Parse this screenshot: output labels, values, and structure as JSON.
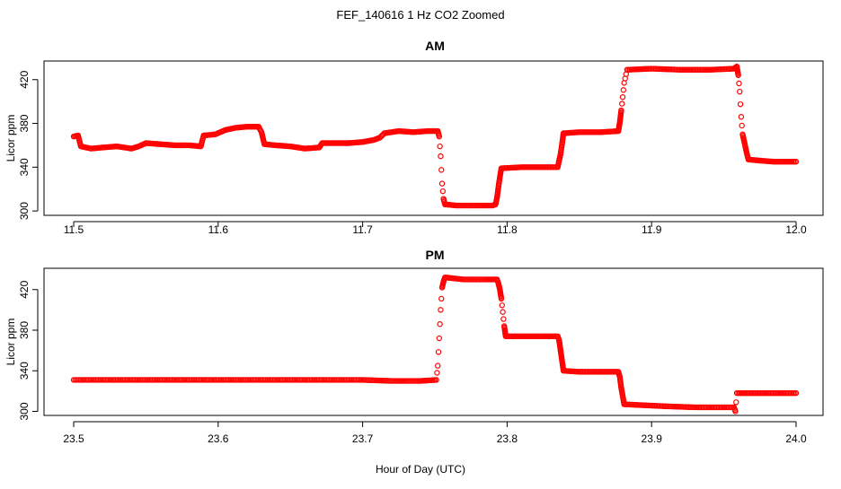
{
  "figure": {
    "title": "FEF_140616  1 Hz CO2 Zoomed",
    "xlabel": "Hour of Day (UTC)"
  },
  "colors": {
    "points": "#ff0000",
    "axes": "#000000",
    "background": "#ffffff"
  },
  "chart_data": [
    {
      "type": "scatter",
      "title": "AM",
      "ylabel": "Licor ppm",
      "xlim": [
        11.5,
        12.0
      ],
      "ylim": [
        296,
        437
      ],
      "x_ticks": [
        "11.5",
        "11.6",
        "11.7",
        "11.8",
        "11.9",
        "12.0"
      ],
      "y_ticks": [
        "300",
        "340",
        "380",
        "420"
      ],
      "grid": false,
      "segments": [
        [
          11.5,
          368
        ],
        [
          11.503,
          369
        ],
        [
          11.505,
          359
        ],
        [
          11.512,
          357
        ],
        [
          11.52,
          358
        ],
        [
          11.53,
          359
        ],
        [
          11.54,
          357
        ],
        [
          11.545,
          359
        ],
        [
          11.55,
          362
        ],
        [
          11.56,
          361
        ],
        [
          11.57,
          360
        ],
        [
          11.58,
          360
        ],
        [
          11.588,
          359
        ],
        [
          11.59,
          369
        ],
        [
          11.598,
          370
        ],
        [
          11.605,
          374
        ],
        [
          11.612,
          376
        ],
        [
          11.62,
          377
        ],
        [
          11.628,
          377
        ],
        [
          11.63,
          372
        ],
        [
          11.632,
          361
        ],
        [
          11.64,
          360
        ],
        [
          11.65,
          359
        ],
        [
          11.66,
          357
        ],
        [
          11.67,
          358
        ],
        [
          11.672,
          362
        ],
        [
          11.68,
          362
        ],
        [
          11.69,
          362
        ],
        [
          11.7,
          363
        ],
        [
          11.708,
          365
        ],
        [
          11.712,
          367
        ],
        [
          11.715,
          371
        ],
        [
          11.725,
          373
        ],
        [
          11.735,
          372
        ],
        [
          11.745,
          373
        ],
        [
          11.752,
          373
        ],
        [
          11.753,
          368
        ],
        [
          11.754,
          350
        ],
        [
          11.755,
          325
        ],
        [
          11.756,
          311
        ],
        [
          11.757,
          306
        ],
        [
          11.765,
          305
        ],
        [
          11.78,
          305
        ],
        [
          11.79,
          305
        ],
        [
          11.792,
          306
        ],
        [
          11.793,
          312
        ],
        [
          11.794,
          322
        ],
        [
          11.795,
          331
        ],
        [
          11.796,
          339
        ],
        [
          11.81,
          340
        ],
        [
          11.82,
          340
        ],
        [
          11.835,
          340
        ],
        [
          11.836,
          346
        ],
        [
          11.837,
          352
        ],
        [
          11.838,
          361
        ],
        [
          11.839,
          371
        ],
        [
          11.85,
          372
        ],
        [
          11.865,
          372
        ],
        [
          11.877,
          373
        ],
        [
          11.878,
          381
        ],
        [
          11.879,
          392
        ],
        [
          11.88,
          404
        ],
        [
          11.881,
          417
        ],
        [
          11.883,
          429
        ],
        [
          11.9,
          430
        ],
        [
          11.92,
          429
        ],
        [
          11.94,
          429
        ],
        [
          11.957,
          430
        ],
        [
          11.959,
          432
        ],
        [
          11.96,
          424
        ],
        [
          11.961,
          409
        ],
        [
          11.962,
          386
        ],
        [
          11.963,
          370
        ],
        [
          11.964,
          364
        ],
        [
          11.965,
          358
        ],
        [
          11.966,
          352
        ],
        [
          11.967,
          347
        ],
        [
          11.975,
          346
        ],
        [
          11.985,
          345
        ],
        [
          12.0,
          345
        ]
      ]
    },
    {
      "type": "scatter",
      "title": "PM",
      "ylabel": "Licor ppm",
      "xlim": [
        23.5,
        24.0
      ],
      "ylim": [
        296,
        441
      ],
      "x_ticks": [
        "23.5",
        "23.6",
        "23.7",
        "23.8",
        "23.9",
        "24.0"
      ],
      "y_ticks": [
        "300",
        "340",
        "380",
        "420"
      ],
      "grid": false,
      "segments": [
        [
          23.5,
          331
        ],
        [
          23.55,
          331
        ],
        [
          23.6,
          331
        ],
        [
          23.65,
          331
        ],
        [
          23.7,
          331
        ],
        [
          23.72,
          330
        ],
        [
          23.74,
          330
        ],
        [
          23.751,
          331
        ],
        [
          23.752,
          345
        ],
        [
          23.753,
          372
        ],
        [
          23.754,
          400
        ],
        [
          23.755,
          422
        ],
        [
          23.756,
          428
        ],
        [
          23.757,
          432
        ],
        [
          23.77,
          430
        ],
        [
          23.785,
          430
        ],
        [
          23.793,
          430
        ],
        [
          23.794,
          426
        ],
        [
          23.795,
          420
        ],
        [
          23.796,
          411
        ],
        [
          23.797,
          398
        ],
        [
          23.798,
          384
        ],
        [
          23.799,
          374
        ],
        [
          23.81,
          374
        ],
        [
          23.825,
          374
        ],
        [
          23.835,
          374
        ],
        [
          23.836,
          370
        ],
        [
          23.837,
          360
        ],
        [
          23.838,
          350
        ],
        [
          23.839,
          340
        ],
        [
          23.85,
          339
        ],
        [
          23.865,
          339
        ],
        [
          23.877,
          339
        ],
        [
          23.878,
          334
        ],
        [
          23.879,
          323
        ],
        [
          23.88,
          315
        ],
        [
          23.881,
          307
        ],
        [
          23.895,
          306
        ],
        [
          23.91,
          305
        ],
        [
          23.93,
          304
        ],
        [
          23.957,
          304
        ],
        [
          23.958,
          300
        ],
        [
          23.959,
          318
        ],
        [
          23.975,
          318
        ],
        [
          24.0,
          318
        ]
      ]
    }
  ]
}
